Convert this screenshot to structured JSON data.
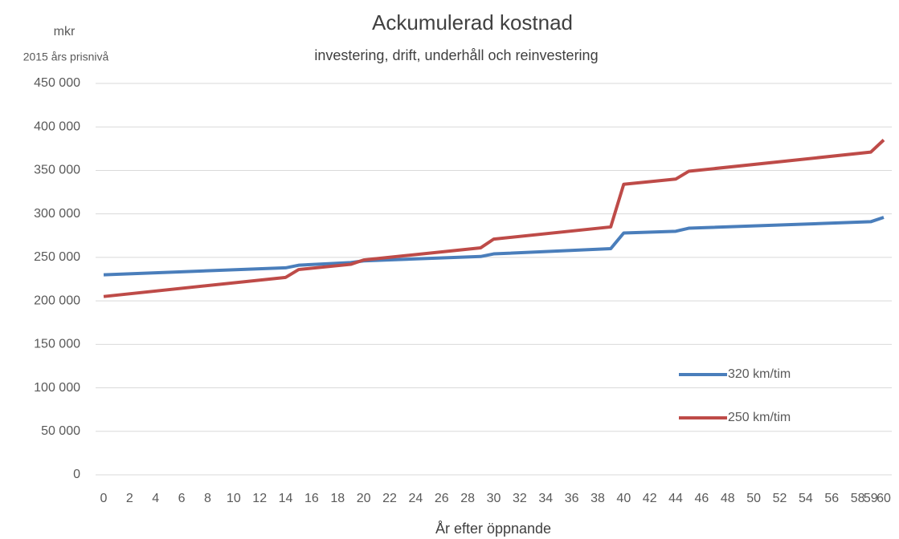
{
  "chart_data": {
    "type": "line",
    "title": "Ackumulerad kostnad",
    "subtitle": "investering, drift, underhåll och reinvestering",
    "y_unit": "mkr",
    "y_label": "2015 års prisnivå",
    "x_label": "År efter öppnande",
    "x": [
      0,
      14,
      15,
      19,
      20,
      29,
      30,
      39,
      40,
      44,
      45,
      59,
      60
    ],
    "series": [
      {
        "name": "320 km/tim",
        "color": "#4a7ebb",
        "values": [
          230000,
          238000,
          241000,
          244000,
          246000,
          251000,
          254000,
          260000,
          278000,
          280000,
          283500,
          291000,
          296000
        ]
      },
      {
        "name": "250 km/tim",
        "color": "#be4b48",
        "values": [
          205000,
          227000,
          236000,
          242000,
          247000,
          261000,
          271000,
          285000,
          334000,
          340000,
          349000,
          371000,
          385000
        ]
      }
    ],
    "xlim": [
      0,
      60
    ],
    "xticks": [
      0,
      2,
      4,
      6,
      8,
      10,
      12,
      14,
      16,
      18,
      20,
      22,
      24,
      26,
      28,
      30,
      32,
      34,
      36,
      38,
      40,
      42,
      44,
      46,
      48,
      50,
      52,
      54,
      56,
      58,
      59,
      60
    ],
    "ylim": [
      0,
      450000
    ],
    "yticks": [
      0,
      {
        "value": 50000,
        "label": "50 000"
      },
      {
        "value": 100000,
        "label": "100 000"
      },
      {
        "value": 150000,
        "label": "150 000"
      },
      {
        "value": 200000,
        "label": "200 000"
      },
      {
        "value": 250000,
        "label": "250 000"
      },
      {
        "value": 300000,
        "label": "300 000"
      },
      {
        "value": 350000,
        "label": "350 000"
      },
      {
        "value": 400000,
        "label": "400 000"
      },
      {
        "value": {
          "value": 450000
        },
        "label": "450 000"
      }
    ],
    "grid": true
  }
}
